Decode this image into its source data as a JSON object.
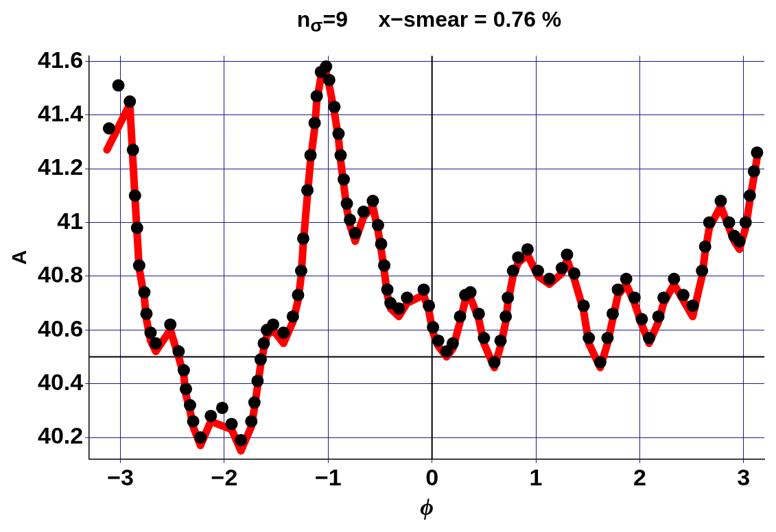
{
  "chart_data": {
    "type": "scatter",
    "title": "n$_{σ}$=9     x−smear = 0.76 %",
    "xlabel": "ϕ",
    "ylabel": "A",
    "xlim": [
      -3.3,
      3.2
    ],
    "ylim": [
      40.12,
      41.62
    ],
    "xticks": [
      -3,
      -2,
      -1,
      0,
      1,
      2,
      3
    ],
    "yticks": [
      40.2,
      40.4,
      40.6,
      40.8,
      41,
      41.2,
      41.4,
      41.6
    ],
    "grid": true,
    "legend": false,
    "ref_lines": [
      {
        "axis": "x",
        "value": 0,
        "color": "#000000"
      },
      {
        "axis": "y",
        "value": 40.5,
        "color": "#000000"
      }
    ],
    "series": [
      {
        "type": "line",
        "color": "#ff0000",
        "marker": "none",
        "x": [
          -3.13,
          -3.02,
          -2.91,
          -2.88,
          -2.86,
          -2.84,
          -2.82,
          -2.77,
          -2.75,
          -2.71,
          -2.66,
          -2.52,
          -2.44,
          -2.39,
          -2.37,
          -2.33,
          -2.3,
          -2.23,
          -2.13,
          -2.02,
          -1.93,
          -1.84,
          -1.74,
          -1.71,
          -1.68,
          -1.65,
          -1.62,
          -1.59,
          -1.53,
          -1.43,
          -1.34,
          -1.29,
          -1.26,
          -1.24,
          -1.2,
          -1.17,
          -1.13,
          -1.11,
          -1.07,
          -1.02,
          -0.99,
          -0.94,
          -0.9,
          -0.88,
          -0.85,
          -0.82,
          -0.79,
          -0.74,
          -0.66,
          -0.57,
          -0.52,
          -0.49,
          -0.46,
          -0.43,
          -0.4,
          -0.32,
          -0.24,
          -0.08,
          -0.03,
          0.01,
          0.06,
          0.14,
          0.2,
          0.27,
          0.32,
          0.37,
          0.45,
          0.5,
          0.6,
          0.66,
          0.71,
          0.73,
          0.78,
          0.83,
          0.92,
          1.02,
          1.13,
          1.25,
          1.3,
          1.37,
          1.46,
          1.51,
          1.62,
          1.69,
          1.74,
          1.79,
          1.87,
          1.95,
          2.02,
          2.09,
          2.18,
          2.23,
          2.33,
          2.42,
          2.51,
          2.6,
          2.63,
          2.67,
          2.78,
          2.86,
          2.91,
          2.96,
          3.02,
          3.06,
          3.1,
          3.13
        ],
        "values": [
          41.27,
          null,
          41.44,
          null,
          41.09,
          null,
          40.83,
          40.72,
          40.64,
          40.56,
          40.52,
          40.6,
          40.5,
          40.43,
          40.36,
          40.3,
          40.24,
          40.17,
          40.26,
          null,
          40.23,
          40.15,
          40.24,
          40.31,
          40.39,
          40.47,
          40.53,
          40.58,
          40.6,
          40.55,
          40.63,
          40.71,
          40.8,
          40.92,
          41.1,
          41.23,
          41.35,
          41.45,
          41.54,
          41.56,
          41.51,
          41.41,
          41.31,
          41.23,
          41.14,
          41.05,
          40.99,
          40.93,
          41.02,
          41.06,
          40.97,
          40.9,
          40.82,
          40.73,
          40.68,
          40.65,
          40.7,
          40.73,
          40.67,
          40.59,
          40.54,
          40.5,
          40.53,
          40.63,
          40.71,
          40.72,
          40.64,
          40.55,
          40.46,
          40.54,
          40.63,
          40.7,
          40.8,
          40.85,
          40.88,
          40.8,
          40.77,
          40.81,
          40.86,
          40.79,
          40.67,
          40.55,
          40.46,
          40.55,
          40.64,
          40.73,
          40.77,
          40.7,
          40.62,
          40.55,
          40.63,
          40.7,
          40.77,
          40.71,
          40.65,
          40.8,
          40.89,
          40.98,
          41.06,
          40.98,
          40.93,
          40.9,
          40.98,
          41.08,
          41.17,
          41.24
        ]
      },
      {
        "color": "#000000",
        "marker": "circle",
        "x": [
          -3.11,
          -3.02,
          -2.91,
          -2.88,
          -2.86,
          -2.84,
          -2.82,
          -2.77,
          -2.75,
          -2.71,
          -2.66,
          -2.52,
          -2.44,
          -2.39,
          -2.37,
          -2.33,
          -2.3,
          -2.23,
          -2.13,
          -2.02,
          -1.93,
          -1.84,
          -1.74,
          -1.71,
          -1.68,
          -1.65,
          -1.62,
          -1.59,
          -1.53,
          -1.43,
          -1.34,
          -1.29,
          -1.26,
          -1.24,
          -1.2,
          -1.17,
          -1.13,
          -1.11,
          -1.07,
          -1.02,
          -0.99,
          -0.94,
          -0.9,
          -0.88,
          -0.85,
          -0.82,
          -0.79,
          -0.74,
          -0.66,
          -0.57,
          -0.52,
          -0.49,
          -0.46,
          -0.43,
          -0.4,
          -0.32,
          -0.24,
          -0.08,
          -0.03,
          0.01,
          0.06,
          0.14,
          0.2,
          0.27,
          0.32,
          0.37,
          0.45,
          0.5,
          0.6,
          0.66,
          0.71,
          0.73,
          0.78,
          0.83,
          0.92,
          1.02,
          1.13,
          1.25,
          1.3,
          1.37,
          1.46,
          1.51,
          1.62,
          1.69,
          1.74,
          1.79,
          1.87,
          1.95,
          2.02,
          2.09,
          2.18,
          2.23,
          2.33,
          2.42,
          2.51,
          2.6,
          2.63,
          2.67,
          2.78,
          2.86,
          2.91,
          2.96,
          3.02,
          3.06,
          3.1,
          3.13
        ],
        "values": [
          41.35,
          41.51,
          41.45,
          41.27,
          41.1,
          40.98,
          40.84,
          40.74,
          40.66,
          40.59,
          40.55,
          40.62,
          40.52,
          40.45,
          40.38,
          40.32,
          40.26,
          40.2,
          40.28,
          40.31,
          40.25,
          40.19,
          40.26,
          40.33,
          40.41,
          40.49,
          40.55,
          40.6,
          40.62,
          40.59,
          40.65,
          40.73,
          40.82,
          40.94,
          41.12,
          41.25,
          41.37,
          41.47,
          41.56,
          41.58,
          41.53,
          41.43,
          41.33,
          41.25,
          41.16,
          41.07,
          41.01,
          40.96,
          41.04,
          41.08,
          40.99,
          40.92,
          40.84,
          40.75,
          40.7,
          40.68,
          40.72,
          40.75,
          40.69,
          40.61,
          40.56,
          40.52,
          40.55,
          40.65,
          40.73,
          40.74,
          40.66,
          40.57,
          40.48,
          40.56,
          40.65,
          40.72,
          40.82,
          40.87,
          40.9,
          40.82,
          40.79,
          40.83,
          40.88,
          40.81,
          40.69,
          40.57,
          40.48,
          40.57,
          40.66,
          40.75,
          40.79,
          40.72,
          40.64,
          40.57,
          40.65,
          40.72,
          40.79,
          40.73,
          40.69,
          40.82,
          40.91,
          41.0,
          41.08,
          41.0,
          40.95,
          40.93,
          41.0,
          41.1,
          41.19,
          41.26
        ]
      }
    ]
  }
}
